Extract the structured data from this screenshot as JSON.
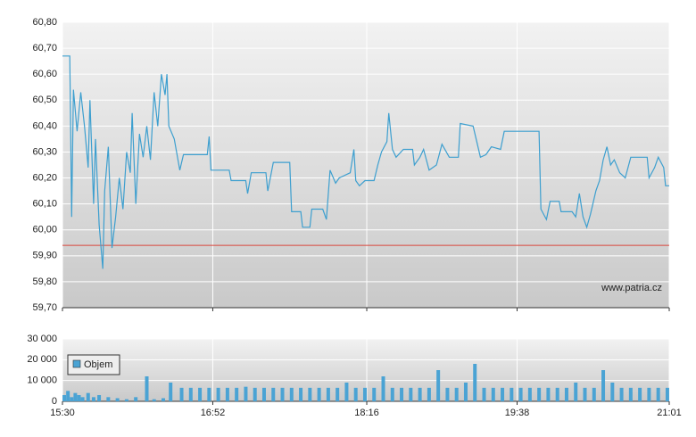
{
  "chart_data": [
    {
      "type": "line",
      "color": "#3d9fcf",
      "watermark": "www.patria.cz",
      "reference_line": 59.94,
      "reference_color": "#d9453b",
      "grid": true,
      "xlim": [
        "15:30",
        "21:01"
      ],
      "xticks": [
        "15:30",
        "16:52",
        "18:16",
        "19:38",
        "21:01"
      ],
      "ylim": [
        59.7,
        60.8
      ],
      "yticks": [
        {
          "value": 59.7,
          "label": "59,70"
        },
        {
          "value": 59.8,
          "label": "59,80"
        },
        {
          "value": 59.9,
          "label": "59,90"
        },
        {
          "value": 60.0,
          "label": "60,00"
        },
        {
          "value": 60.1,
          "label": "60,10"
        },
        {
          "value": 60.2,
          "label": "60,20"
        },
        {
          "value": 60.3,
          "label": "60,30"
        },
        {
          "value": 60.4,
          "label": "60,40"
        },
        {
          "value": 60.5,
          "label": "60,50"
        },
        {
          "value": 60.6,
          "label": "60,60"
        },
        {
          "value": 60.7,
          "label": "60,70"
        },
        {
          "value": 60.8,
          "label": "60,80"
        }
      ],
      "x": [
        "15:30",
        "15:34",
        "15:35",
        "15:36",
        "15:38",
        "15:40",
        "15:42",
        "15:44",
        "15:45",
        "15:47",
        "15:48",
        "15:50",
        "15:52",
        "15:53",
        "15:55",
        "15:57",
        "15:59",
        "16:01",
        "16:03",
        "16:05",
        "16:07",
        "16:08",
        "16:10",
        "16:12",
        "16:14",
        "16:16",
        "16:18",
        "16:20",
        "16:22",
        "16:24",
        "16:26",
        "16:27",
        "16:28",
        "16:31",
        "16:34",
        "16:36",
        "16:49",
        "16:50",
        "16:51",
        "17:01",
        "17:02",
        "17:10",
        "17:11",
        "17:13",
        "17:21",
        "17:22",
        "17:25",
        "17:34",
        "17:35",
        "17:40",
        "17:41",
        "17:45",
        "17:46",
        "17:52",
        "17:54",
        "17:56",
        "17:59",
        "18:01",
        "18:07",
        "18:09",
        "18:10",
        "18:12",
        "18:15",
        "18:20",
        "18:22",
        "18:24",
        "18:27",
        "18:28",
        "18:30",
        "18:32",
        "18:36",
        "18:41",
        "18:42",
        "18:45",
        "18:47",
        "18:50",
        "18:54",
        "18:57",
        "19:01",
        "19:06",
        "19:07",
        "19:14",
        "19:16",
        "19:18",
        "19:21",
        "19:24",
        "19:29",
        "19:31",
        "19:50",
        "19:51",
        "19:54",
        "19:56",
        "20:01",
        "20:02",
        "20:08",
        "20:10",
        "20:12",
        "20:14",
        "20:16",
        "20:18",
        "20:21",
        "20:23",
        "20:25",
        "20:27",
        "20:29",
        "20:31",
        "20:34",
        "20:37",
        "20:40",
        "20:49",
        "20:50",
        "20:53",
        "20:55",
        "20:58",
        "20:59",
        "21:01"
      ],
      "values": [
        60.67,
        60.67,
        60.05,
        60.54,
        60.38,
        60.53,
        60.4,
        60.24,
        60.5,
        60.1,
        60.35,
        60.02,
        59.85,
        60.15,
        60.32,
        59.93,
        60.05,
        60.2,
        60.08,
        60.3,
        60.22,
        60.45,
        60.1,
        60.37,
        60.28,
        60.4,
        60.27,
        60.53,
        60.4,
        60.6,
        60.52,
        60.6,
        60.4,
        60.35,
        60.23,
        60.29,
        60.29,
        60.36,
        60.23,
        60.23,
        60.19,
        60.19,
        60.14,
        60.22,
        60.22,
        60.15,
        60.26,
        60.26,
        60.07,
        60.07,
        60.01,
        60.01,
        60.08,
        60.08,
        60.04,
        60.23,
        60.18,
        60.2,
        60.22,
        60.31,
        60.19,
        60.17,
        60.19,
        60.19,
        60.25,
        60.3,
        60.34,
        60.45,
        60.31,
        60.28,
        60.31,
        60.31,
        60.25,
        60.28,
        60.31,
        60.23,
        60.25,
        60.33,
        60.28,
        60.28,
        60.41,
        60.4,
        60.34,
        60.28,
        60.29,
        60.32,
        60.31,
        60.38,
        60.38,
        60.08,
        60.04,
        60.11,
        60.11,
        60.07,
        60.07,
        60.05,
        60.14,
        60.05,
        60.01,
        60.06,
        60.15,
        60.19,
        60.27,
        60.32,
        60.25,
        60.27,
        60.22,
        60.2,
        60.28,
        60.28,
        60.2,
        60.24,
        60.28,
        60.24,
        60.17,
        60.17
      ]
    },
    {
      "type": "bar",
      "grid": true,
      "xlim": [
        "15:30",
        "21:01"
      ],
      "xticks": [
        "15:30",
        "16:52",
        "18:16",
        "19:38",
        "21:01"
      ],
      "ylim": [
        0,
        30000
      ],
      "yticks": [
        0,
        {
          "value": 10000,
          "label": "10 000"
        },
        {
          "value": 20000,
          "label": "20 000"
        },
        {
          "value": 30000,
          "label": "30 000"
        }
      ],
      "series": [
        {
          "name": "Objem",
          "color": "#4aa3d4",
          "x": [
            "15:31",
            "15:33",
            "15:35",
            "15:37",
            "15:39",
            "15:41",
            "15:44",
            "15:47",
            "15:50",
            "15:55",
            "16:00",
            "16:05",
            "16:10",
            "16:16",
            "16:20",
            "16:25",
            "16:29",
            "16:35",
            "16:40",
            "16:45",
            "16:50",
            "16:55",
            "17:00",
            "17:05",
            "17:10",
            "17:15",
            "17:20",
            "17:25",
            "17:30",
            "17:35",
            "17:40",
            "17:45",
            "17:50",
            "17:55",
            "18:00",
            "18:05",
            "18:10",
            "18:15",
            "18:20",
            "18:25",
            "18:30",
            "18:35",
            "18:40",
            "18:45",
            "18:50",
            "18:55",
            "19:00",
            "19:05",
            "19:10",
            "19:15",
            "19:20",
            "19:25",
            "19:30",
            "19:35",
            "19:40",
            "19:45",
            "19:50",
            "19:55",
            "20:00",
            "20:05",
            "20:10",
            "20:15",
            "20:20",
            "20:25",
            "20:30",
            "20:35",
            "20:40",
            "20:45",
            "20:50",
            "20:55",
            "21:00"
          ],
          "values": [
            3000,
            5000,
            2000,
            4000,
            3000,
            2000,
            4000,
            2000,
            3000,
            2000,
            1500,
            1000,
            2000,
            12000,
            1000,
            1500,
            9000,
            6500,
            6500,
            6500,
            6500,
            6500,
            6500,
            6500,
            7000,
            6500,
            6500,
            6500,
            6500,
            6500,
            6500,
            6500,
            6500,
            6500,
            6500,
            9000,
            6500,
            6500,
            6500,
            12000,
            6500,
            6500,
            6500,
            6500,
            6500,
            15000,
            6500,
            6500,
            9000,
            18000,
            6500,
            6500,
            6500,
            6500,
            6500,
            6500,
            6500,
            6500,
            6500,
            6500,
            9000,
            6500,
            6500,
            15000,
            9000,
            6500,
            6500,
            6500,
            6500,
            6500,
            6500
          ]
        }
      ]
    }
  ]
}
